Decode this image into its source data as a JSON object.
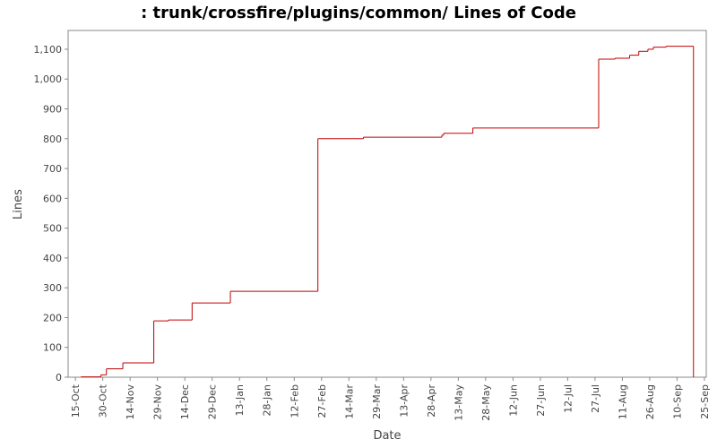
{
  "chart_data": {
    "type": "step",
    "title": ": trunk/crossfire/plugins/common/ Lines of Code",
    "x_label": "Date",
    "y_label": "Lines",
    "color": "#c00000",
    "x": [
      "18-Oct",
      "29-Oct",
      "1-Nov",
      "10-Nov",
      "27-Nov",
      "5-Dec",
      "18-Dec",
      "8-Jan",
      "25-Feb",
      "22-Mar",
      "4-May",
      "5-May",
      "21-May",
      "29-Jul",
      "7-Aug",
      "15-Aug",
      "20-Aug",
      "25-Aug",
      "28-Aug",
      "4-Sep",
      "19-Sep"
    ],
    "values": [
      1,
      8,
      28,
      48,
      189,
      192,
      249,
      288,
      800,
      805,
      812,
      818,
      836,
      1067,
      1070,
      1080,
      1093,
      1100,
      1107,
      1110,
      0
    ],
    "xlim": [
      "11-Oct",
      "26-Sep"
    ],
    "xticks": [
      "15-Oct",
      "30-Oct",
      "14-Nov",
      "29-Nov",
      "14-Dec",
      "29-Dec",
      "13-Jan",
      "28-Jan",
      "12-Feb",
      "27-Feb",
      "14-Mar",
      "29-Mar",
      "13-Apr",
      "28-Apr",
      "13-May",
      "28-May",
      "12-Jun",
      "27-Jun",
      "12-Jul",
      "27-Jul",
      "11-Aug",
      "26-Aug",
      "10-Sep",
      "25-Sep"
    ],
    "ylim": [
      0,
      1163
    ],
    "yticks": [
      0,
      100,
      200,
      300,
      400,
      500,
      600,
      700,
      800,
      900,
      {
        "value": 1000,
        "label": "1,000"
      },
      {
        "value": 1100,
        "label": "1,100"
      }
    ]
  }
}
